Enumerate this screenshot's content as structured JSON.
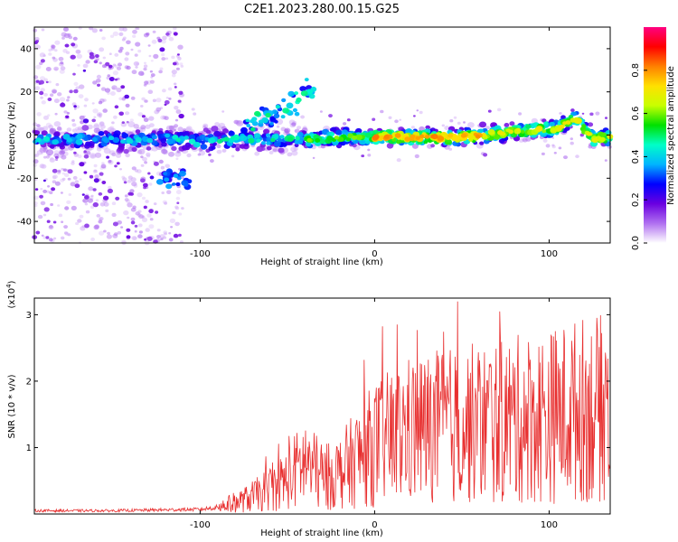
{
  "title": "C2E1.2023.280.00.15.G25",
  "spectrogram": {
    "type": "heatmap",
    "xlabel": "Height of straight line (km)",
    "ylabel": "Frequency (Hz)",
    "xlim": [
      -195,
      135
    ],
    "ylim": [
      -50,
      50
    ],
    "xticks": [
      -100,
      0,
      100
    ],
    "yticks": [
      -40,
      -20,
      0,
      20,
      40
    ],
    "colorbar": {
      "label": "Normalized spectral amplitude",
      "range": [
        0,
        1
      ],
      "ticks": [
        "0.0",
        "0.2",
        "0.4",
        "0.6",
        "0.8"
      ],
      "colors": [
        "#ffffff",
        "#b070f0",
        "#6a00e0",
        "#0000ff",
        "#00b4ff",
        "#00ffc8",
        "#00e000",
        "#c8ff00",
        "#ffe000",
        "#ff8000",
        "#ff0000",
        "#ff0080"
      ]
    }
  },
  "snr": {
    "type": "line",
    "xlabel": "Height of straight line (km)",
    "ylabel": "SNR (10 * v/v)",
    "yscale_label": "(x10",
    "yscale_exp": "4",
    "xlim": [
      -195,
      135
    ],
    "ylim": [
      0,
      3.25
    ],
    "xticks": [
      -100,
      0,
      100
    ],
    "yticks": [
      1,
      2,
      3
    ],
    "color": "#e83030"
  },
  "chart_data": [
    {
      "type": "heatmap",
      "description_series": "dominant frequency ridge vs height",
      "x": [
        -195,
        -160,
        -120,
        -100,
        -80,
        -60,
        -45,
        -35,
        -25,
        0,
        25,
        50,
        75,
        95,
        105,
        115,
        125,
        135
      ],
      "ridge_y": [
        -2,
        -2,
        -2,
        -3,
        -2,
        -2,
        -2,
        -2,
        -1,
        -1,
        -1,
        -1,
        1,
        3,
        3,
        8,
        -2,
        -1
      ],
      "branch_x": [
        -75,
        -60,
        -50,
        -40,
        -35
      ],
      "branch_y": [
        2,
        6,
        10,
        16,
        20
      ],
      "blob": {
        "x": -115,
        "y": -20
      },
      "xlim": [
        -195,
        135
      ],
      "ylim": [
        -50,
        50
      ]
    },
    {
      "type": "line",
      "x": [
        -195,
        -150,
        -100,
        -90,
        -75,
        -65,
        -50,
        -40,
        -30,
        -20,
        -10,
        0,
        10,
        20,
        40,
        60,
        80,
        100,
        120,
        135
      ],
      "y": [
        0.05,
        0.05,
        0.07,
        0.1,
        0.2,
        0.3,
        0.5,
        0.75,
        0.5,
        0.6,
        0.8,
        1.0,
        1.1,
        1.2,
        1.25,
        1.3,
        1.35,
        1.4,
        1.5,
        1.5
      ],
      "ylim": [
        0,
        3.25
      ]
    }
  ]
}
